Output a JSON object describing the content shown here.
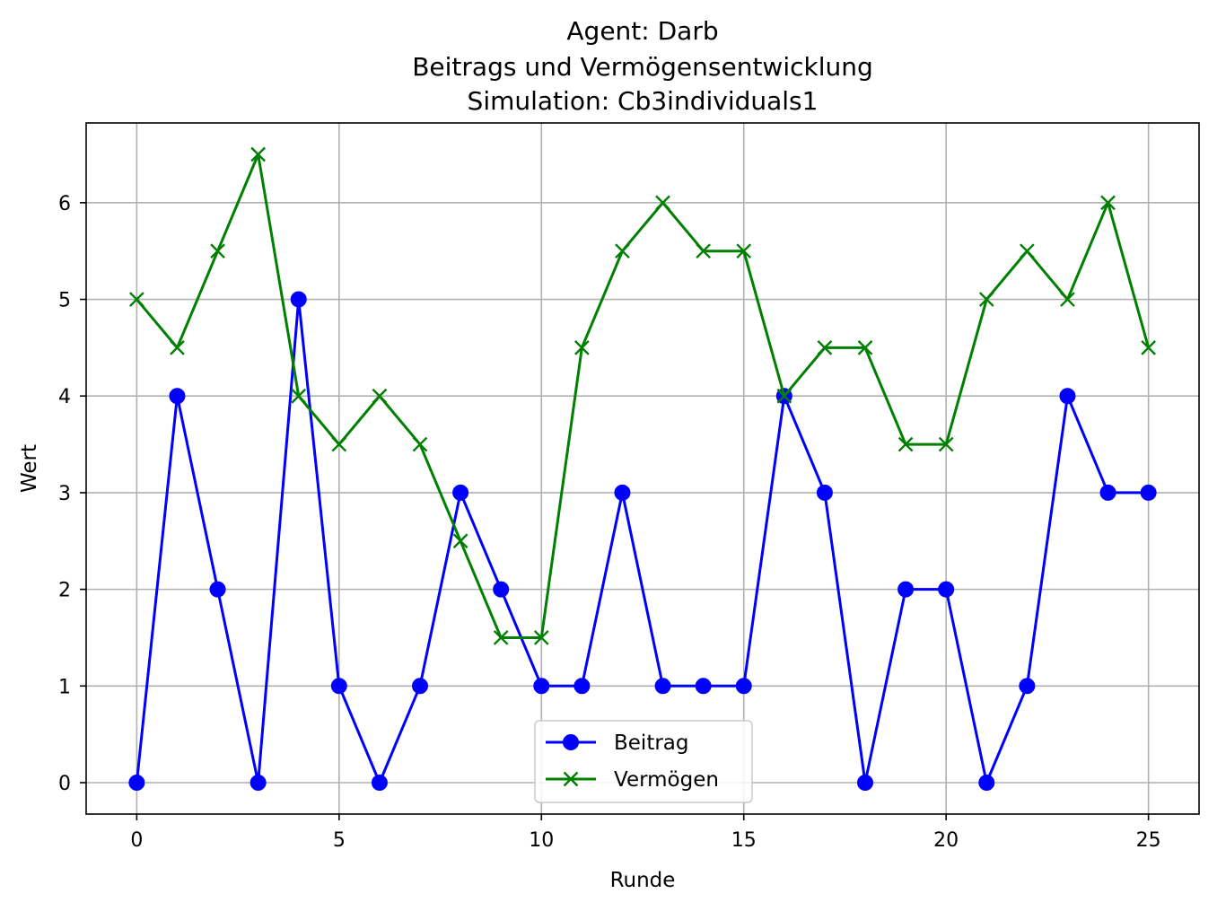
{
  "chart_data": {
    "type": "line",
    "title_lines": [
      "Agent: Darb",
      "Beitrags und Vermögensentwicklung",
      "Simulation: Cb3individuals1"
    ],
    "xlabel": "Runde",
    "ylabel": "Wert",
    "xlim": [
      -1.25,
      26.25
    ],
    "ylim": [
      -0.325,
      6.825
    ],
    "x_ticks": [
      0,
      5,
      10,
      15,
      20,
      25
    ],
    "y_ticks": [
      0,
      1,
      2,
      3,
      4,
      5,
      6
    ],
    "grid": true,
    "legend_position": "lower-center",
    "x": [
      0,
      1,
      2,
      3,
      4,
      5,
      6,
      7,
      8,
      9,
      10,
      11,
      12,
      13,
      14,
      15,
      16,
      17,
      18,
      19,
      20,
      21,
      22,
      23,
      24,
      25
    ],
    "series": [
      {
        "name": "Beitrag",
        "color": "#0000ff",
        "marker": "circle",
        "values": [
          0,
          4,
          2,
          0,
          5,
          1,
          0,
          1,
          3,
          2,
          1,
          1,
          3,
          1,
          1,
          1,
          4,
          3,
          0,
          2,
          2,
          0,
          1,
          4,
          3,
          3
        ]
      },
      {
        "name": "Vermögen",
        "color": "#008000",
        "marker": "x",
        "values": [
          5,
          4.5,
          5.5,
          6.5,
          4,
          3.5,
          4,
          3.5,
          2.5,
          1.5,
          1.5,
          4.5,
          5.5,
          6,
          5.5,
          5.5,
          4,
          4.5,
          4.5,
          3.5,
          3.5,
          5,
          5.5,
          5,
          6,
          4.5
        ]
      }
    ]
  }
}
